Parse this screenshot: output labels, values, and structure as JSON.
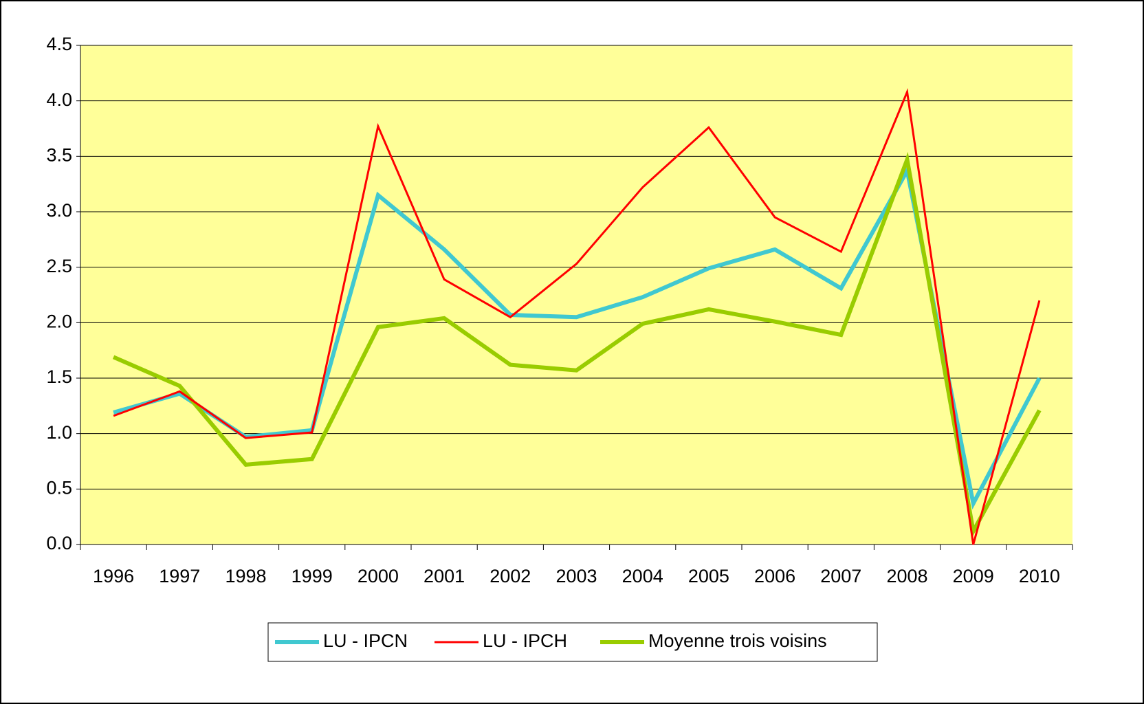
{
  "chart_data": {
    "type": "line",
    "categories": [
      "1996",
      "1997",
      "1998",
      "1999",
      "2000",
      "2001",
      "2002",
      "2003",
      "2004",
      "2005",
      "2006",
      "2007",
      "2008",
      "2009",
      "2010"
    ],
    "series": [
      {
        "name": "LU - IPCN",
        "color": "#40c8d0",
        "values": [
          1.19,
          1.36,
          0.97,
          1.03,
          3.15,
          2.66,
          2.07,
          2.05,
          2.23,
          2.49,
          2.66,
          2.31,
          3.37,
          0.37,
          1.5
        ]
      },
      {
        "name": "LU - IPCH",
        "color": "#ff0000",
        "values": [
          1.16,
          1.38,
          0.96,
          1.01,
          3.77,
          2.39,
          2.05,
          2.53,
          3.22,
          3.76,
          2.95,
          2.64,
          4.08,
          0.0,
          2.2
        ]
      },
      {
        "name": "Moyenne trois voisins",
        "color": "#99cc00",
        "values": [
          1.69,
          1.43,
          0.72,
          0.77,
          1.96,
          2.04,
          1.62,
          1.57,
          1.99,
          2.12,
          2.01,
          1.89,
          3.47,
          0.12,
          1.21
        ]
      }
    ],
    "ylim": [
      0,
      4.5
    ],
    "yticks": [
      {
        "value": 0,
        "label": "0.0"
      },
      0.5,
      {
        "value": 1,
        "label": "1.0"
      },
      1.5,
      {
        "value": 2,
        "label": "2.0"
      },
      2.5,
      {
        "value": 3,
        "label": "3.0"
      },
      3.5,
      {
        "value": 4,
        "label": "4.0"
      },
      4.5
    ],
    "grid": true,
    "background": "#ffff99",
    "legend": "bottom"
  }
}
